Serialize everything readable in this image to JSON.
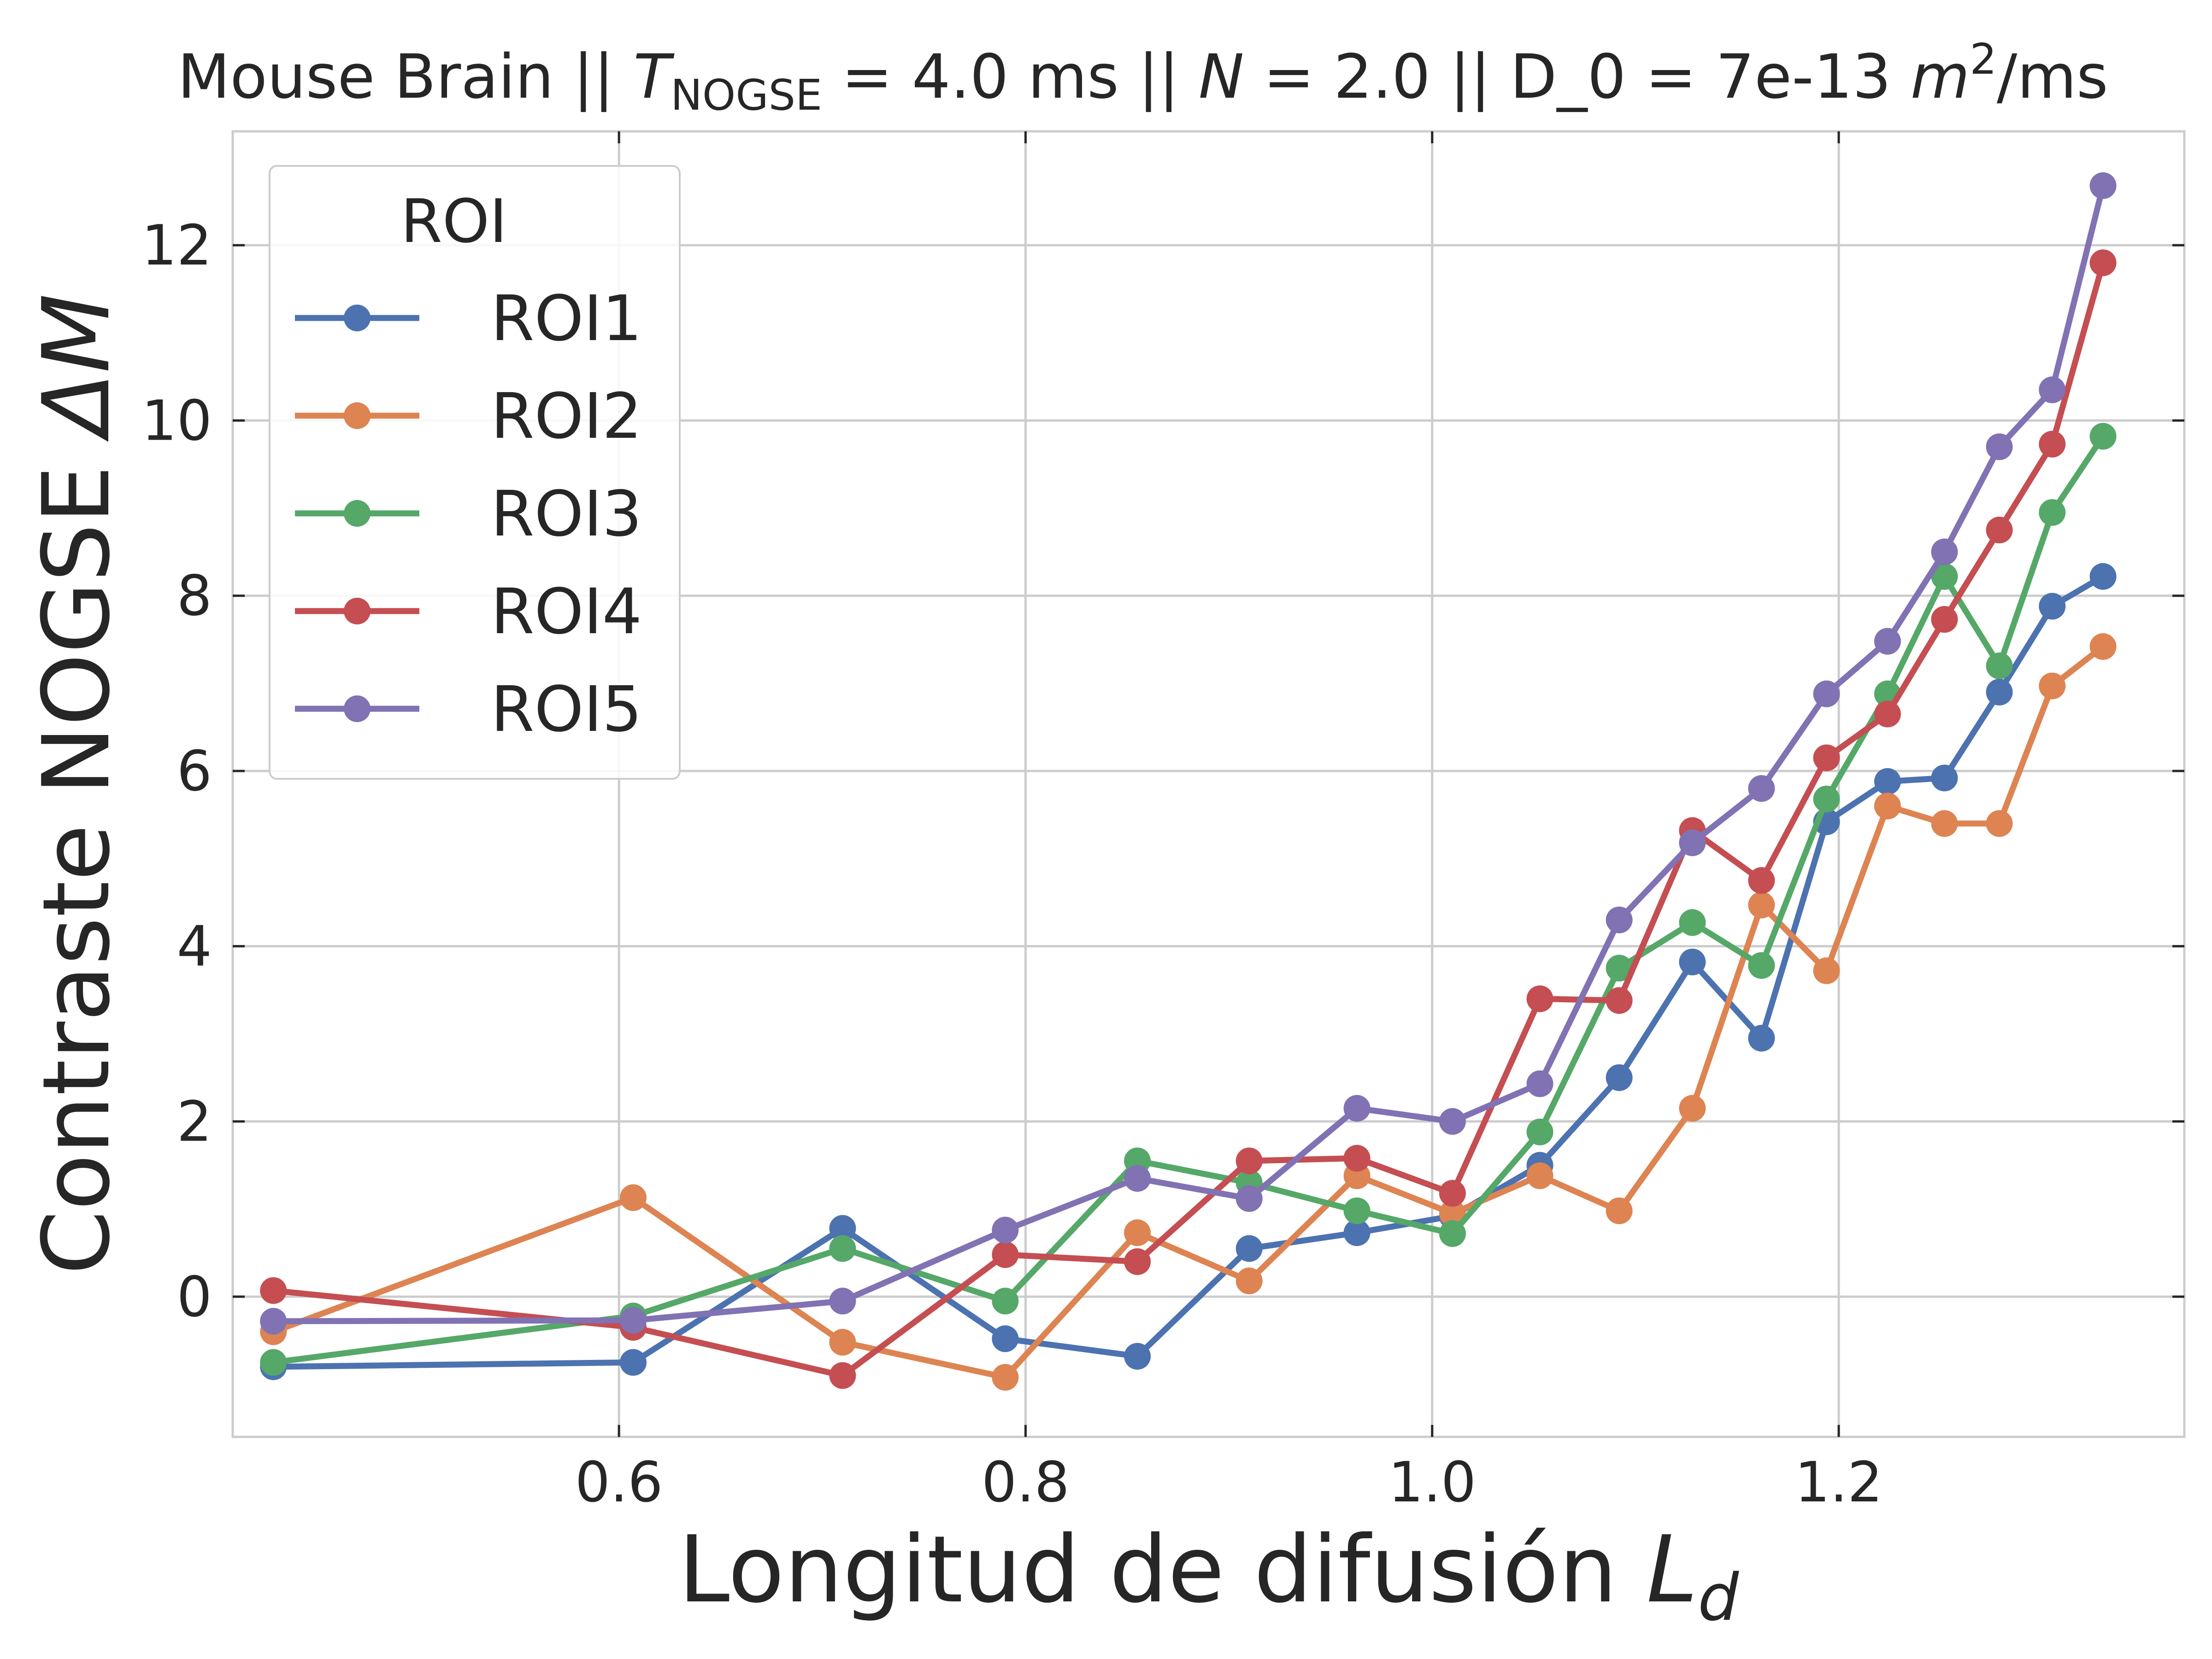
{
  "chart_data": {
    "type": "line",
    "title": {
      "prefix": "Mouse Brain || ",
      "t_symbol": "T",
      "t_subscript": "NOGSE",
      "t_value": " = 4.0 ms || ",
      "n_symbol": "N",
      "n_value": " = 2.0 || D_0 = 7e-13 ",
      "unit_symbol": "m",
      "unit_exponent": "2",
      "unit_rest": "/ms"
    },
    "xlabel": {
      "text": "Longitud de difusión ",
      "symbol": "L",
      "subscript": "d"
    },
    "ylabel": {
      "text": "Contraste NOGSE ",
      "symbol": "ΔM"
    },
    "xlim": [
      0.41,
      1.37
    ],
    "ylim": [
      -1.6,
      13.3
    ],
    "xticks": [
      {
        "value": 0.6,
        "label": "0.6"
      },
      {
        "value": 0.8,
        "label": "0.8"
      },
      {
        "value": 1.0,
        "label": "1.0"
      },
      {
        "value": 1.2,
        "label": "1.2"
      }
    ],
    "yticks": [
      {
        "value": 0,
        "label": "0"
      },
      {
        "value": 2,
        "label": "2"
      },
      {
        "value": 4,
        "label": "4"
      },
      {
        "value": 6,
        "label": "6"
      },
      {
        "value": 8,
        "label": "8"
      },
      {
        "value": 10,
        "label": "10"
      },
      {
        "value": 12,
        "label": "12"
      }
    ],
    "grid": true,
    "legend": {
      "title": "ROI",
      "position": "top-left"
    },
    "x": [
      0.43,
      0.607,
      0.71,
      0.79,
      0.855,
      0.91,
      0.963,
      1.01,
      1.053,
      1.092,
      1.128,
      1.162,
      1.194,
      1.224,
      1.252,
      1.279,
      1.305,
      1.33
    ],
    "series": [
      {
        "name": "ROI1",
        "color": "#4c72b0",
        "values": [
          -0.8,
          -0.75,
          0.78,
          -0.48,
          -0.68,
          0.55,
          0.73,
          0.92,
          1.5,
          2.5,
          3.82,
          2.95,
          5.42,
          5.88,
          5.92,
          6.9,
          7.88,
          8.22
        ]
      },
      {
        "name": "ROI2",
        "color": "#dd8452",
        "values": [
          -0.4,
          1.13,
          -0.52,
          -0.92,
          0.73,
          0.18,
          1.38,
          0.95,
          1.38,
          0.98,
          2.15,
          4.47,
          3.72,
          5.6,
          5.4,
          5.4,
          6.97,
          7.42
        ]
      },
      {
        "name": "ROI3",
        "color": "#55a868",
        "values": [
          -0.75,
          -0.22,
          0.55,
          -0.05,
          1.55,
          1.3,
          0.98,
          0.72,
          1.88,
          3.75,
          4.27,
          3.78,
          5.68,
          6.88,
          8.22,
          7.2,
          8.95,
          9.82
        ]
      },
      {
        "name": "ROI4",
        "color": "#c44e52",
        "values": [
          0.07,
          -0.35,
          -0.9,
          0.48,
          0.4,
          1.55,
          1.58,
          1.18,
          3.4,
          3.38,
          5.32,
          4.75,
          6.15,
          6.65,
          7.73,
          8.75,
          9.73,
          11.8
        ]
      },
      {
        "name": "ROI5",
        "color": "#8172b3",
        "values": [
          -0.28,
          -0.27,
          -0.05,
          0.76,
          1.35,
          1.12,
          2.15,
          2.0,
          2.43,
          4.3,
          5.18,
          5.8,
          6.88,
          7.48,
          8.5,
          9.7,
          10.35,
          12.68
        ]
      }
    ]
  }
}
